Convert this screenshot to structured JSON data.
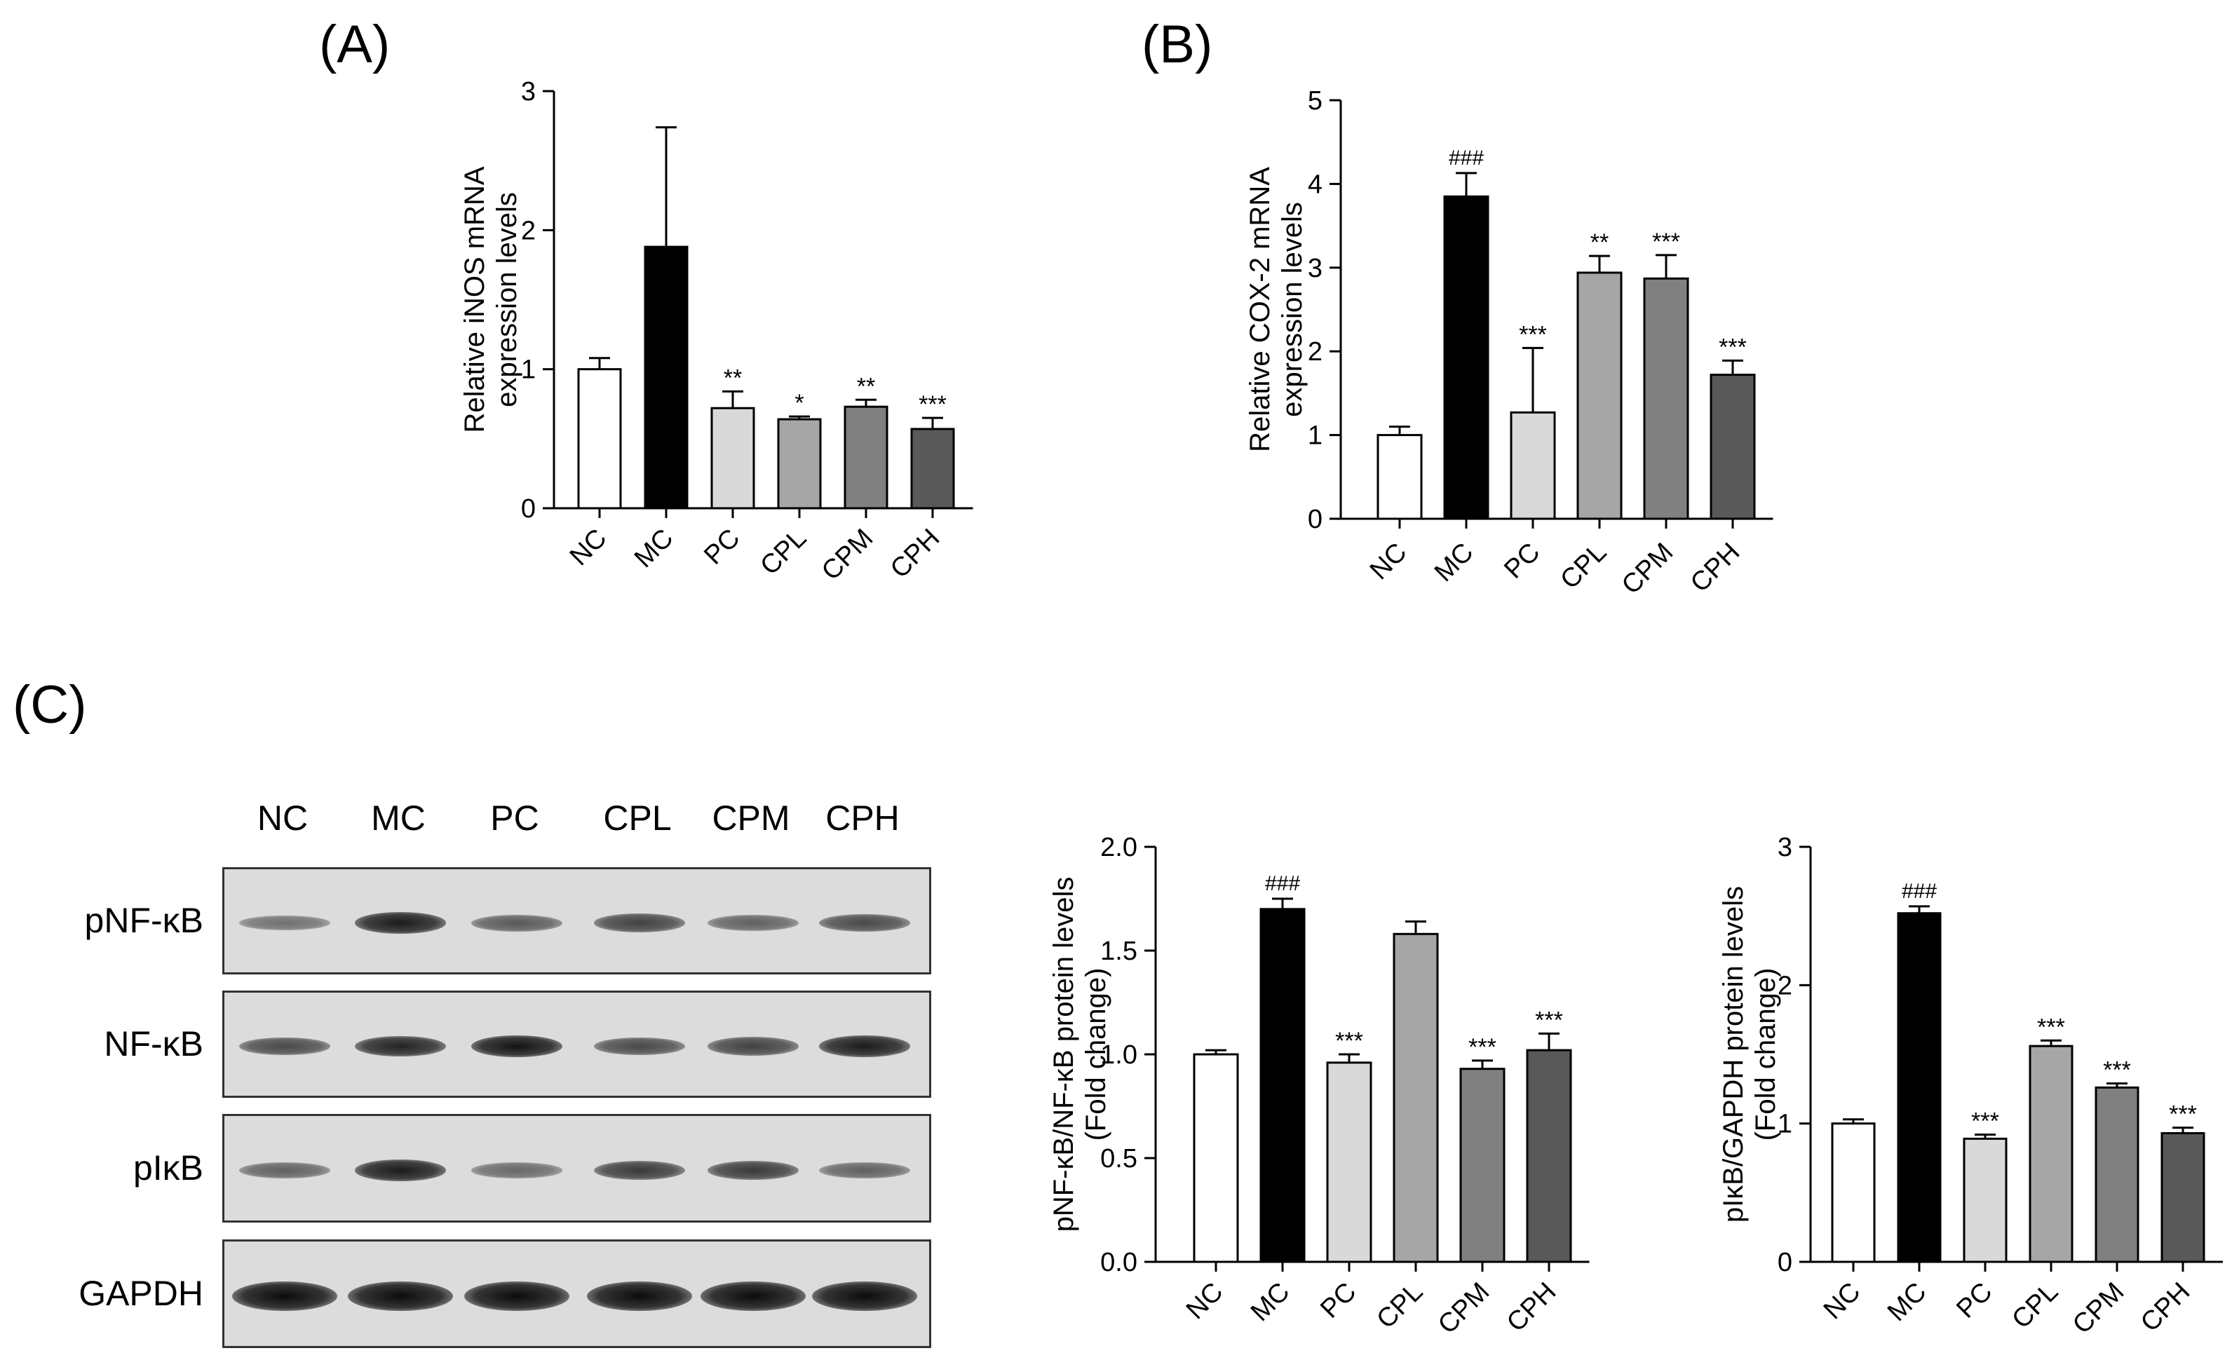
{
  "panels": {
    "a": "(A)",
    "b": "(B)",
    "c": "(C)"
  },
  "colors": {
    "NC": "#ffffff",
    "MC": "#000000",
    "PC": "#d9d9d9",
    "CPL": "#a6a6a6",
    "CPM": "#808080",
    "CPH": "#595959"
  },
  "chart_data": [
    {
      "id": "A",
      "type": "bar",
      "categories": [
        "NC",
        "MC",
        "PC",
        "CPL",
        "CPM",
        "CPH"
      ],
      "values": [
        1.0,
        1.88,
        0.72,
        0.64,
        0.73,
        0.57
      ],
      "errors": [
        0.08,
        0.86,
        0.12,
        0.02,
        0.05,
        0.08
      ],
      "annotations": [
        "",
        "",
        "**",
        "*",
        "**",
        "***"
      ],
      "ylabel": [
        "Relative iNOS mRNA",
        "expression levels"
      ],
      "ylim": [
        0,
        3
      ],
      "yticks": [
        "0",
        "1",
        "2",
        "3"
      ]
    },
    {
      "id": "B",
      "type": "bar",
      "categories": [
        "NC",
        "MC",
        "PC",
        "CPL",
        "CPM",
        "CPH"
      ],
      "values": [
        1.0,
        3.85,
        1.27,
        2.94,
        2.87,
        1.72
      ],
      "errors": [
        0.1,
        0.28,
        0.77,
        0.2,
        0.28,
        0.17
      ],
      "annotations": [
        "",
        "###",
        "***",
        "**",
        "***",
        "***"
      ],
      "ylabel": [
        "Relative COX-2 mRNA",
        "expression levels"
      ],
      "ylim": [
        0,
        5
      ],
      "yticks": [
        "0",
        "1",
        "2",
        "3",
        "4",
        "5"
      ]
    },
    {
      "id": "C1",
      "type": "bar",
      "categories": [
        "NC",
        "MC",
        "PC",
        "CPL",
        "CPM",
        "CPH"
      ],
      "values": [
        1.0,
        1.7,
        0.96,
        1.58,
        0.93,
        1.02
      ],
      "errors": [
        0.02,
        0.05,
        0.04,
        0.06,
        0.04,
        0.08
      ],
      "annotations": [
        "",
        "###",
        "***",
        "",
        "***",
        "***"
      ],
      "ylabel": [
        "pNF-κB/NF-κB protein levels",
        "(Fold change)"
      ],
      "ylim": [
        0,
        2
      ],
      "yticks": [
        "0.0",
        "0.5",
        "1.0",
        "1.5",
        "2.0"
      ]
    },
    {
      "id": "C2",
      "type": "bar",
      "categories": [
        "NC",
        "MC",
        "PC",
        "CPL",
        "CPM",
        "CPH"
      ],
      "values": [
        1.0,
        2.52,
        0.89,
        1.56,
        1.26,
        0.93
      ],
      "errors": [
        0.03,
        0.05,
        0.03,
        0.04,
        0.03,
        0.04
      ],
      "annotations": [
        "",
        "###",
        "***",
        "***",
        "***",
        "***"
      ],
      "ylabel": [
        "pIκB/GAPDH protein levels",
        "(Fold change)"
      ],
      "ylim": [
        0,
        3
      ],
      "yticks": [
        "0",
        "1",
        "2",
        "3"
      ]
    }
  ],
  "blot": {
    "lanes": [
      "NC",
      "MC",
      "PC",
      "CPL",
      "CPM",
      "CPH"
    ],
    "rows": [
      {
        "label": "pNF-κB",
        "intensity": [
          0.35,
          0.9,
          0.5,
          0.65,
          0.45,
          0.6
        ]
      },
      {
        "label": "NF-κB",
        "intensity": [
          0.6,
          0.85,
          0.95,
          0.6,
          0.65,
          0.9
        ]
      },
      {
        "label": "pIκB",
        "intensity": [
          0.45,
          0.9,
          0.4,
          0.7,
          0.7,
          0.45
        ]
      },
      {
        "label": "GAPDH",
        "intensity": [
          1.0,
          1.0,
          1.0,
          1.0,
          1.0,
          1.0
        ]
      }
    ]
  }
}
